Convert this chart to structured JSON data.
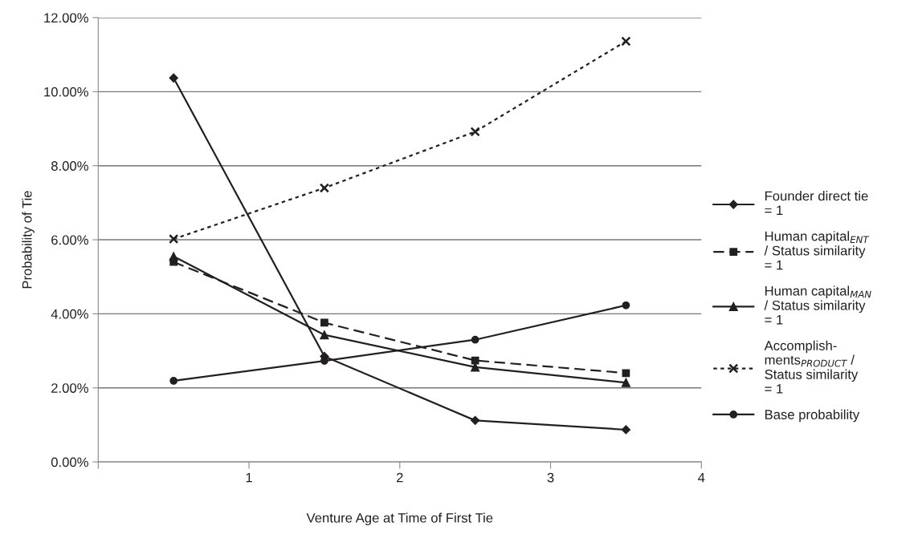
{
  "chart_data": {
    "type": "line",
    "xlabel": "Venture Age at Time of First Tie",
    "ylabel": "Probability of Tie",
    "x": [
      0.5,
      1.5,
      2.5,
      3.5
    ],
    "xlim": [
      0,
      4
    ],
    "xticks": [
      {
        "value": 0,
        "label": null
      },
      1,
      2,
      3,
      4
    ],
    "ylim": [
      0,
      12
    ],
    "yticks": [
      {
        "value": 0,
        "label": "0.00%"
      },
      {
        "value": 2,
        "label": "2.00%"
      },
      {
        "value": 4,
        "label": "4.00%"
      },
      {
        "value": 6,
        "label": "6.00%"
      },
      {
        "value": 8,
        "label": "8.00%"
      },
      {
        "value": 10,
        "label": "10.00%"
      },
      {
        "value": 12,
        "label": "12.00%"
      }
    ],
    "grid": "y",
    "legend": "right",
    "series": [
      {
        "name": "Founder direct tie\n= 1",
        "color": "#231f20",
        "marker": "diamond",
        "line_style": "solid",
        "values": [
          10.37,
          2.85,
          1.12,
          0.87
        ]
      },
      {
        "name": "Human capital$_{ENT}$\n/ Status similarity\n= 1",
        "color": "#231f20",
        "marker": "square",
        "line_style": "dashed",
        "values": [
          5.4,
          3.76,
          2.74,
          2.4
        ]
      },
      {
        "name": "Human capital$_{MAN}$\n/ Status similarity\n= 1",
        "color": "#231f20",
        "marker": "triangle",
        "line_style": "solid",
        "values": [
          5.55,
          3.43,
          2.56,
          2.14
        ]
      },
      {
        "name": "Accomplish-\nments$_{PRODUCT}$ /\nStatus similarity\n= 1",
        "color": "#231f20",
        "marker": "cross",
        "line_style": "dotted",
        "values": [
          6.02,
          7.4,
          8.92,
          11.36
        ]
      },
      {
        "name": "Base probability",
        "color": "#231f20",
        "marker": "circle",
        "line_style": "solid",
        "values": [
          2.19,
          2.73,
          3.3,
          4.23
        ]
      }
    ]
  }
}
